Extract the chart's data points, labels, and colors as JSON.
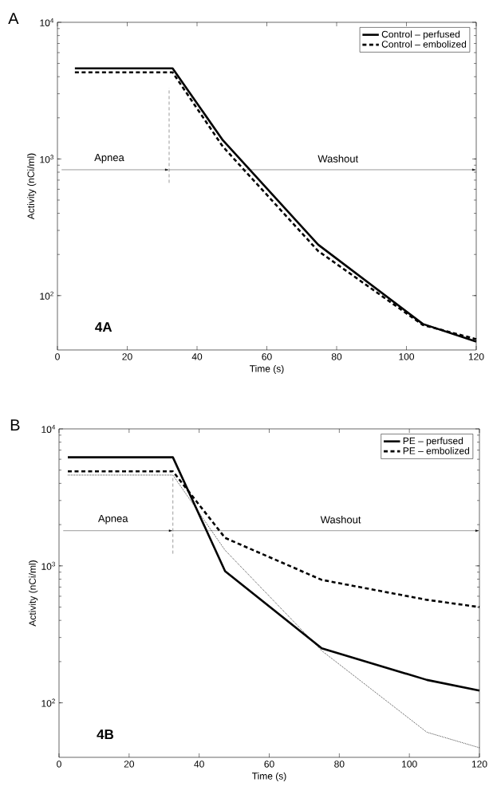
{
  "chart_data": [
    {
      "type": "line",
      "title": "A",
      "xlabel": "Time (s)",
      "ylabel": "Activity (nCi/ml)",
      "log": "y",
      "legend": "top right",
      "x": [
        5,
        33,
        47.4,
        74.7,
        104.7,
        120
      ],
      "series": [
        {
          "name": "Control – perfused",
          "color": "#000000",
          "line_style": "solid",
          "values": [
            4600,
            4600,
            1370,
            236,
            62,
            46
          ]
        },
        {
          "name": "Control – embolized",
          "color": "#000000",
          "line_style": "dashed",
          "values": [
            4300,
            4300,
            1230,
            212,
            61,
            48
          ]
        }
      ],
      "xlim": [
        0,
        120
      ],
      "xticks": [
        0,
        20,
        40,
        60,
        80,
        100,
        120
      ],
      "ylim": [
        40,
        10000
      ],
      "yticks": [
        {
          "value": 100,
          "label": "10$^{2}$"
        },
        {
          "value": 1000,
          "label": "10$^{3}$"
        },
        {
          "value": 10000,
          "label": "10$^{4}$"
        }
      ],
      "ref_lines": [
        {
          "axis": "x",
          "value": 32,
          "line_style": "dashed"
        }
      ],
      "annotations": [
        "Apnea",
        "Washout",
        "4A"
      ]
    },
    {
      "type": "line",
      "title": "B",
      "xlabel": "Time (s)",
      "ylabel": "Activity (nCi/ml)",
      "log": "y",
      "legend": "top right",
      "x": [
        2.5,
        32.5,
        47.4,
        75,
        105,
        120
      ],
      "series": [
        {
          "name": "PE – perfused",
          "color": "#000000",
          "line_style": "solid",
          "values": [
            6200,
            6200,
            915,
            250,
            147,
            123
          ]
        },
        {
          "name": "PE – embolized",
          "color": "#000000",
          "line_style": "dashed",
          "values": [
            4900,
            4900,
            1600,
            790,
            565,
            500
          ]
        },
        {
          "color": "#000000",
          "line_style": "dotted",
          "values": [
            4600,
            4600,
            1300,
            240,
            61,
            47
          ]
        }
      ],
      "xlim": [
        0,
        120
      ],
      "xticks": [
        0,
        20,
        40,
        60,
        80,
        100,
        120
      ],
      "ylim": [
        40,
        10000
      ],
      "yticks": [
        {
          "value": 100,
          "label": "10$^{2}$"
        },
        {
          "value": 1000,
          "label": "10$^{3}$"
        },
        {
          "value": 10000,
          "label": "10$^{4}$"
        }
      ],
      "ref_lines": [
        {
          "axis": "x",
          "value": 32.5,
          "line_style": "dashed"
        }
      ],
      "annotations": [
        "Apnea",
        "Washout",
        "4B"
      ]
    }
  ]
}
